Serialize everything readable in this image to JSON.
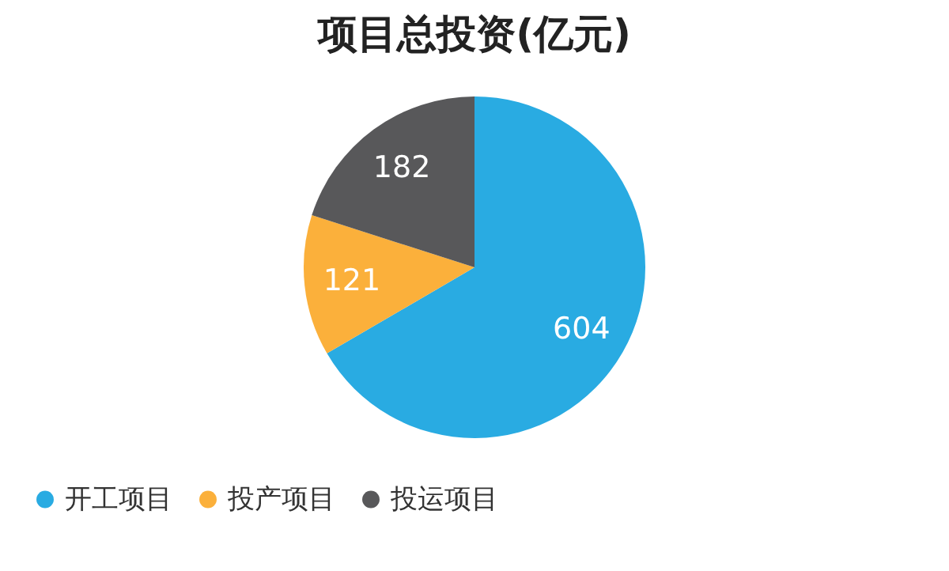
{
  "chart_data": {
    "type": "pie",
    "title": "项目总投资(亿元)",
    "categories": [
      "开工项目",
      "投产项目",
      "投运项目"
    ],
    "values": [
      604,
      121,
      182
    ],
    "colors": [
      "#29abe2",
      "#fbb03b",
      "#58585a"
    ],
    "data_labels": true,
    "legend": "bottom"
  }
}
